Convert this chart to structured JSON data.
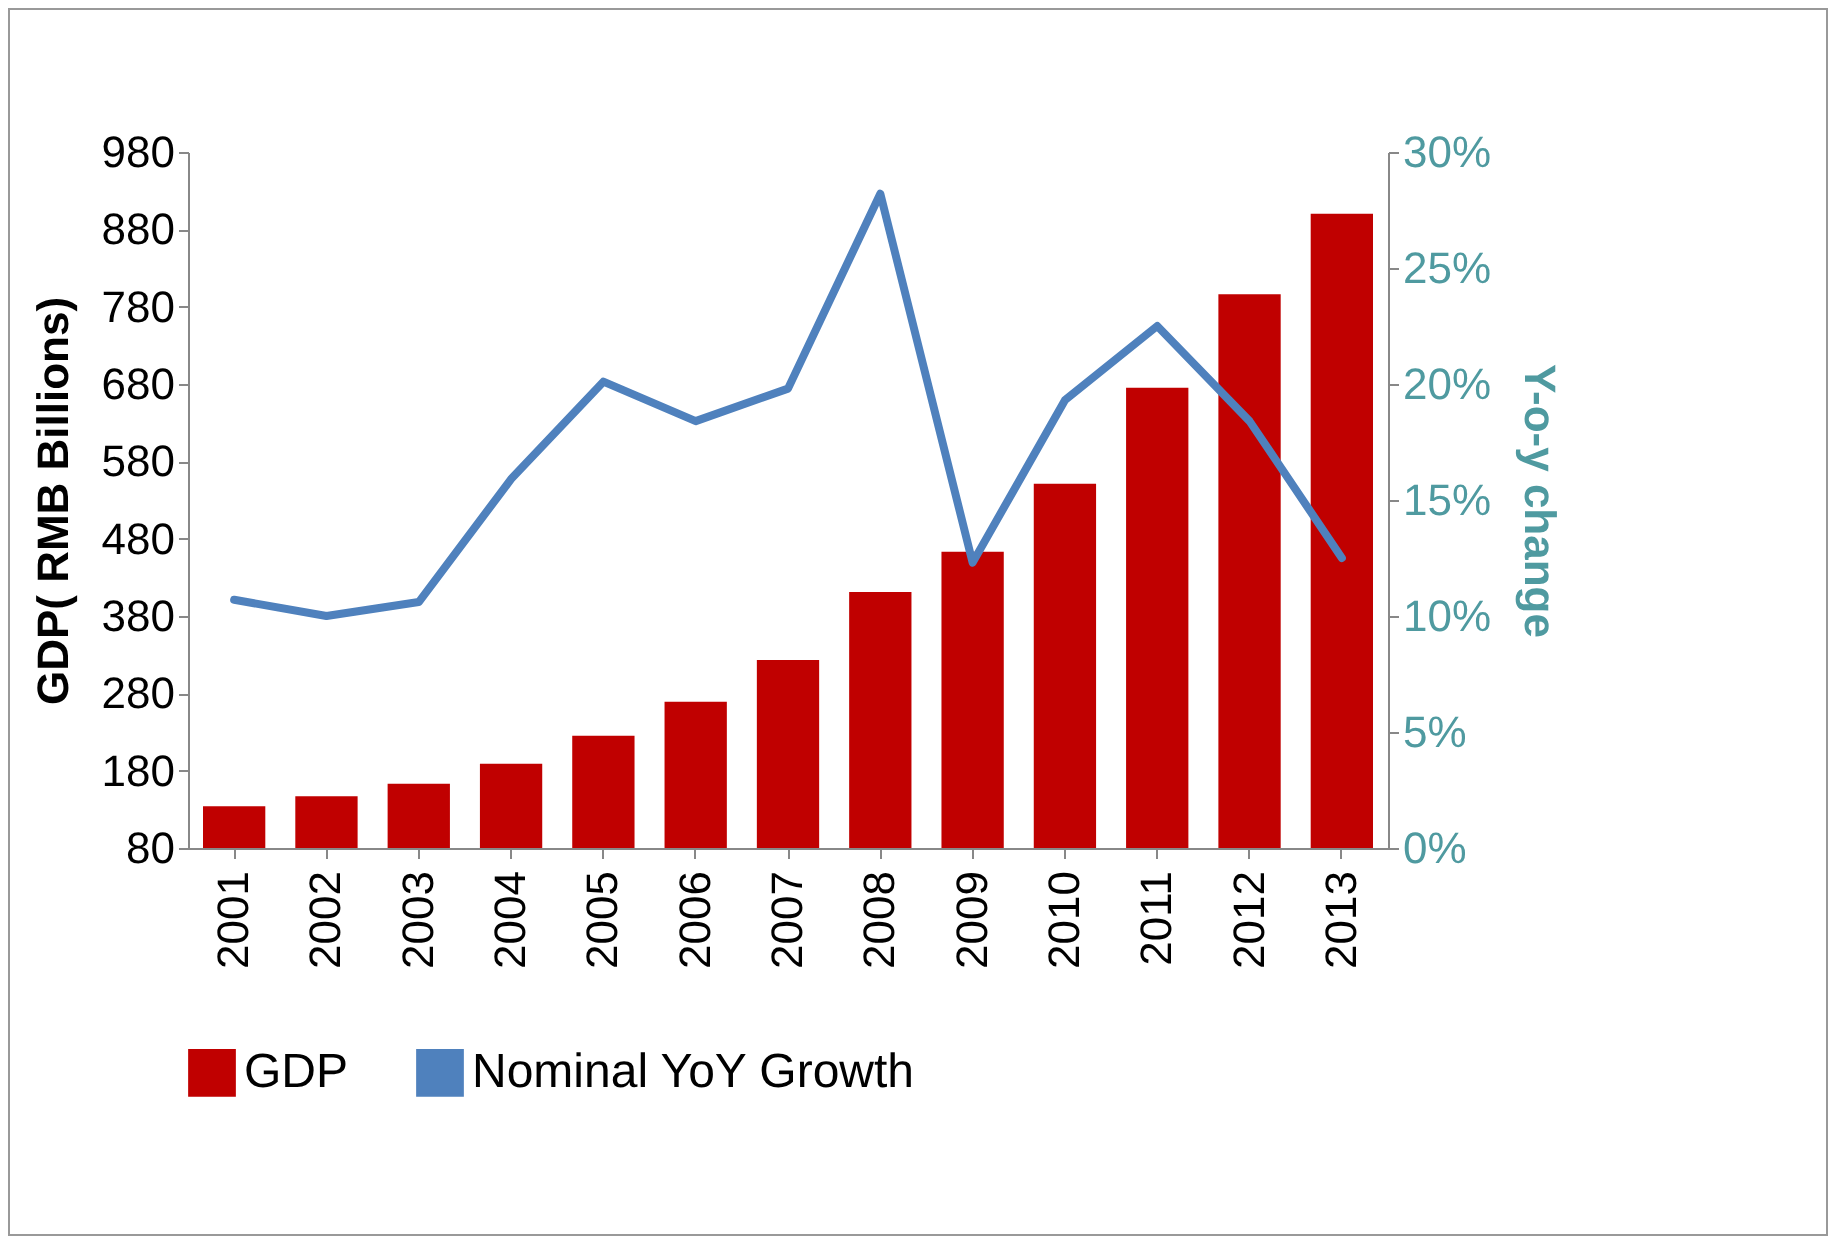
{
  "chart_data": {
    "type": "bar",
    "categories": [
      "2001",
      "2002",
      "2003",
      "2004",
      "2005",
      "2006",
      "2007",
      "2008",
      "2009",
      "2010",
      "2011",
      "2012",
      "2013"
    ],
    "series": [
      {
        "name": "GDP",
        "color": "#c00000",
        "values": [
          134,
          147,
          163,
          189,
          225,
          269,
          323,
          411,
          463,
          551,
          675,
          796,
          900
        ]
      },
      {
        "name": "Nominal YoY Growth",
        "type": "line",
        "axis": "y2",
        "color": "#4f81bd",
        "values": [
          10.7,
          10.0,
          10.6,
          15.9,
          20.1,
          18.4,
          19.8,
          28.2,
          12.3,
          19.3,
          22.5,
          18.4,
          12.5
        ]
      }
    ],
    "ylabel": "GDP( RMB Billions)",
    "y2label": "Y-o-y change",
    "ylim": [
      80,
      980
    ],
    "yticks": [
      80,
      180,
      280,
      380,
      480,
      580,
      680,
      780,
      880,
      980
    ],
    "y2lim": [
      0,
      30
    ],
    "y2ticks": [
      {
        "value": 0,
        "label": "0%"
      },
      {
        "value": 5,
        "label": "5%"
      },
      {
        "value": 10,
        "label": "10%"
      },
      {
        "value": 15,
        "label": "15%"
      },
      {
        "value": 20,
        "label": "20%"
      },
      {
        "value": 25,
        "label": "25%"
      },
      {
        "value": 30,
        "label": "30%"
      }
    ],
    "legend": "bottom",
    "grid": false,
    "marker": "none"
  }
}
